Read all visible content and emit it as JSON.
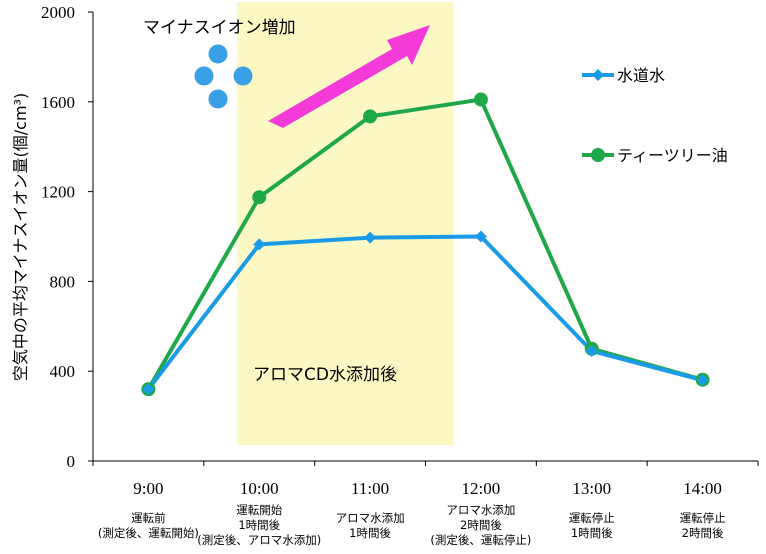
{
  "chart_data": {
    "type": "line",
    "ylabel": "空気中の平均マイナスイオン量(個/cm³)",
    "ylim": [
      0,
      2000
    ],
    "yticks": [
      "0",
      "400",
      "800",
      "1200",
      "1600",
      "2000"
    ],
    "categories": [
      "9:00",
      "10:00",
      "11:00",
      "12:00",
      "13:00",
      "14:00"
    ],
    "category_notes": [
      "運転前\n(測定後、運転開始)",
      "運転開始\n1時間後\n(測定後、アロマ水添加)",
      "アロマ水添加\n1時間後",
      "アロマ水添加\n2時間後\n(測定後、運転停止)",
      "運転停止\n1時間後",
      "運転停止\n2時間後"
    ],
    "series": [
      {
        "name": "水道水",
        "color": "#1a9be8",
        "marker": "diamond",
        "values": [
          320,
          965,
          995,
          1000,
          490,
          360
        ]
      },
      {
        "name": "ティーツリー油",
        "color": "#1fa84a",
        "marker": "circle",
        "values": [
          320,
          1175,
          1535,
          1610,
          500,
          362
        ]
      }
    ],
    "legend_position": "right",
    "highlight": {
      "from_category": "10:00",
      "to_category": "12:00",
      "color": "#fbf8c4"
    },
    "annotations": {
      "top": "マイナスイオン増加",
      "middle": "アロマCD水添加後"
    },
    "decor": {
      "arrow_color": "#f43ad8",
      "bubble_color": "#3aa0e6"
    },
    "grid": false
  }
}
